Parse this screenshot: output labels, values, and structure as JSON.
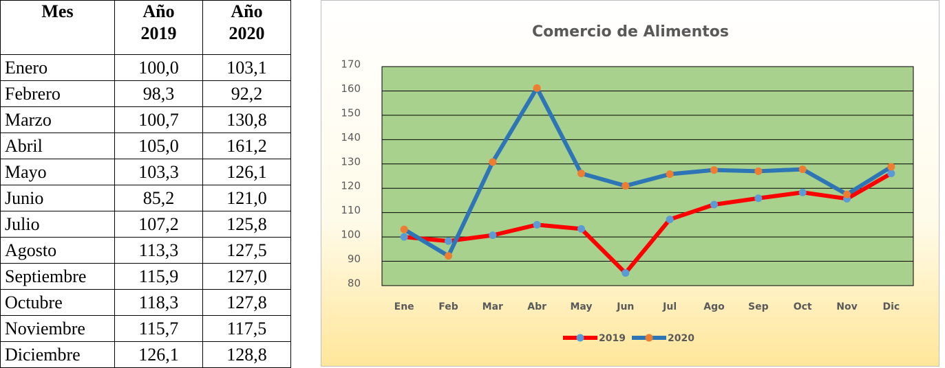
{
  "table": {
    "header": [
      "Mes",
      "Año 2019",
      "Año 2020"
    ],
    "rows": [
      [
        "Enero",
        "100,0",
        "103,1"
      ],
      [
        "Febrero",
        "98,3",
        "92,2"
      ],
      [
        "Marzo",
        "100,7",
        "130,8"
      ],
      [
        "Abril",
        "105,0",
        "161,2"
      ],
      [
        "Mayo",
        "103,3",
        "126,1"
      ],
      [
        "Junio",
        "85,2",
        "121,0"
      ],
      [
        "Julio",
        "107,2",
        "125,8"
      ],
      [
        "Agosto",
        "113,3",
        "127,5"
      ],
      [
        "Septiembre",
        "115,9",
        "127,0"
      ],
      [
        "Octubre",
        "118,3",
        "127,8"
      ],
      [
        "Noviembre",
        "115,7",
        "117,5"
      ],
      [
        "Diciembre",
        "126,1",
        "128,8"
      ]
    ]
  },
  "chart_data": {
    "type": "line",
    "title": "Comercio de Alimentos",
    "categories": [
      "Ene",
      "Feb",
      "Mar",
      "Abr",
      "May",
      "Jun",
      "Jul",
      "Ago",
      "Sep",
      "Oct",
      "Nov",
      "Dic"
    ],
    "series": [
      {
        "name": "2019",
        "color": "#ff0000",
        "marker_color": "#5b9bd5",
        "values": [
          100.0,
          98.3,
          100.7,
          105.0,
          103.3,
          85.2,
          107.2,
          113.3,
          115.9,
          118.3,
          115.7,
          126.1
        ]
      },
      {
        "name": "2020",
        "color": "#2e75b6",
        "marker_color": "#ed7d31",
        "values": [
          103.1,
          92.2,
          130.8,
          161.2,
          126.1,
          121.0,
          125.8,
          127.5,
          127.0,
          127.8,
          117.5,
          128.8
        ]
      }
    ],
    "ylim": [
      80,
      170
    ],
    "yticks": [
      80,
      90,
      100,
      110,
      120,
      130,
      140,
      150,
      160,
      170
    ],
    "grid": true,
    "plot_color": "#a9d18e",
    "legend": "bottom"
  }
}
